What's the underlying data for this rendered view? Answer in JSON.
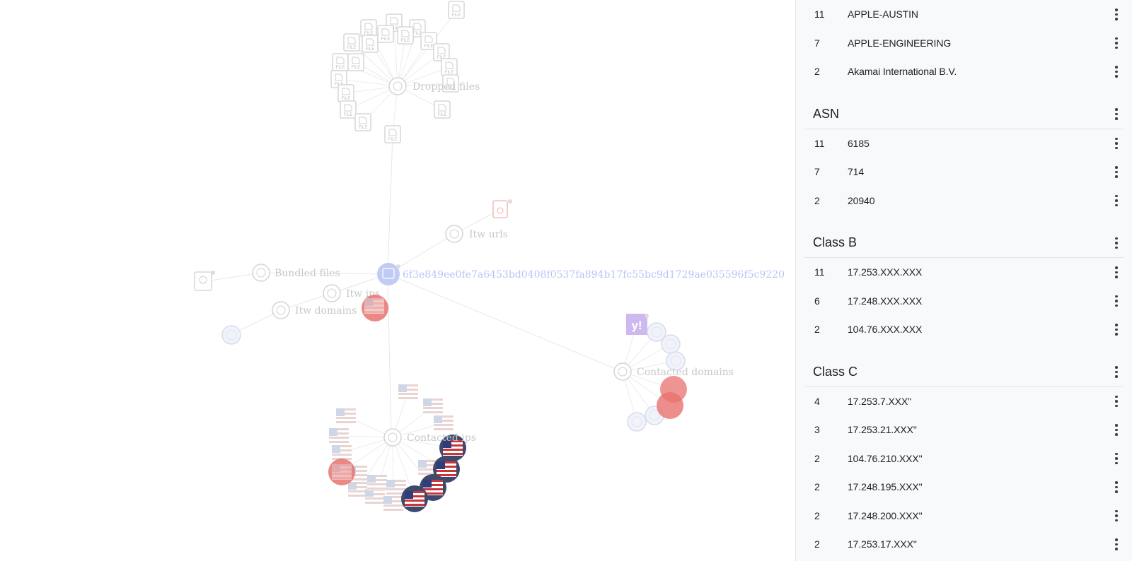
{
  "graph": {
    "hash": "6f3e849ee0fe7a6453bd0408f0537fa894b17fc55bc9d1729ae035596f5c9220",
    "labels": {
      "dropped_files": "Dropped files",
      "itw_urls": "Itw urls",
      "bundled_files": "Bundled files",
      "itw_ips": "Itw ips",
      "itw_domains": "Itw domains",
      "contacted_ips": "Contacted ips",
      "contacted_domains": "Contacted domains"
    },
    "file_badge": "FILE",
    "yahoo_badge": "y!",
    "colors": {
      "edge": "#e6e6e6",
      "hub_stroke": "#d4d4d4",
      "red_node": "#e8726f",
      "flag_dark": "#3d4a6b",
      "hash_node": "#b9c6f4",
      "yahoo": "#cdb9f0"
    }
  },
  "panel": {
    "top_rows": [
      {
        "count": "11",
        "value": "APPLE-AUSTIN"
      },
      {
        "count": "7",
        "value": "APPLE-ENGINEERING"
      },
      {
        "count": "2",
        "value": "Akamai International B.V."
      }
    ],
    "sections": [
      {
        "title": "ASN",
        "rows": [
          {
            "count": "11",
            "value": "6185"
          },
          {
            "count": "7",
            "value": "714"
          },
          {
            "count": "2",
            "value": "20940"
          }
        ]
      },
      {
        "title": "Class B",
        "rows": [
          {
            "count": "11",
            "value": "17.253.XXX.XXX"
          },
          {
            "count": "6",
            "value": "17.248.XXX.XXX"
          },
          {
            "count": "2",
            "value": "104.76.XXX.XXX"
          }
        ]
      },
      {
        "title": "Class C",
        "rows": [
          {
            "count": "4",
            "value": "17.253.7.XXX\""
          },
          {
            "count": "3",
            "value": "17.253.21.XXX\""
          },
          {
            "count": "2",
            "value": "104.76.210.XXX\""
          },
          {
            "count": "2",
            "value": "17.248.195.XXX\""
          },
          {
            "count": "2",
            "value": "17.248.200.XXX\""
          },
          {
            "count": "2",
            "value": "17.253.17.XXX\""
          }
        ]
      }
    ]
  }
}
